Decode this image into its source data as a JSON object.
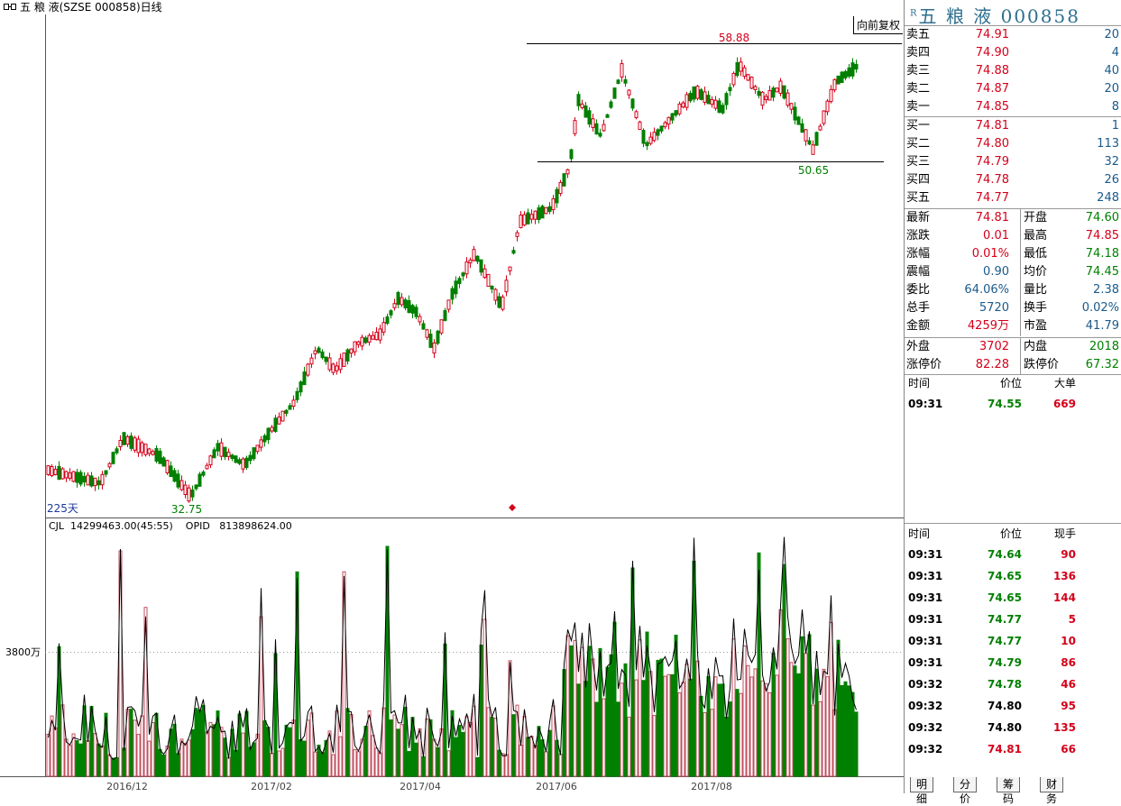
{
  "titlebar": {
    "title": "五 粮 液(SZSE 000858)日线",
    "fuquan": "向前复权"
  },
  "chart": {
    "high_label": "58.88",
    "low_label": "50.65",
    "min_label": "32.75",
    "days_label": "225天",
    "vol_info": "CJL  14299463.00(45:55)    OPID   813898624.00",
    "vol_axis_label": "3800万",
    "x_labels": [
      "2016/12",
      "2017/02",
      "2017/04",
      "2017/06",
      "2017/08"
    ]
  },
  "panel": {
    "name": "五 粮 液 000858",
    "name_mark": "R",
    "asks": [
      {
        "label": "卖五",
        "price": "74.91",
        "vol": "20"
      },
      {
        "label": "卖四",
        "price": "74.90",
        "vol": "4"
      },
      {
        "label": "卖三",
        "price": "74.88",
        "vol": "40"
      },
      {
        "label": "卖二",
        "price": "74.87",
        "vol": "20"
      },
      {
        "label": "卖一",
        "price": "74.85",
        "vol": "8"
      }
    ],
    "bids": [
      {
        "label": "买一",
        "price": "74.81",
        "vol": "1"
      },
      {
        "label": "买二",
        "price": "74.80",
        "vol": "113"
      },
      {
        "label": "买三",
        "price": "74.79",
        "vol": "32"
      },
      {
        "label": "买四",
        "price": "74.78",
        "vol": "26"
      },
      {
        "label": "买五",
        "price": "74.77",
        "vol": "248"
      }
    ],
    "quote": [
      {
        "l1": "最新",
        "v1": "74.81",
        "c1": "red",
        "l2": "开盘",
        "v2": "74.60",
        "c2": "green"
      },
      {
        "l1": "涨跌",
        "v1": "0.01",
        "c1": "red",
        "l2": "最高",
        "v2": "74.85",
        "c2": "red"
      },
      {
        "l1": "涨幅",
        "v1": "0.01%",
        "c1": "red",
        "l2": "最低",
        "v2": "74.18",
        "c2": "green"
      },
      {
        "l1": "震幅",
        "v1": "0.90",
        "c1": "blue",
        "l2": "均价",
        "v2": "74.45",
        "c2": "green"
      },
      {
        "l1": "委比",
        "v1": "64.06%",
        "c1": "blue",
        "l2": "量比",
        "v2": "2.38",
        "c2": "blue"
      },
      {
        "l1": "总手",
        "v1": "5720",
        "c1": "blue",
        "l2": "换手",
        "v2": "0.02%",
        "c2": "blue"
      },
      {
        "l1": "金额",
        "v1": "4259万",
        "c1": "red",
        "l2": "市盈",
        "v2": "41.79",
        "c2": "blue"
      }
    ],
    "outer": {
      "l1": "外盘",
      "v1": "3702",
      "l2": "内盘",
      "v2": "2018"
    },
    "limit": {
      "l1": "涨停价",
      "v1": "82.28",
      "l2": "跌停价",
      "v2": "67.32"
    },
    "bigorder": {
      "h_time": "时间",
      "h_price": "价位",
      "h_vol": "大单",
      "time": "09:31",
      "price": "74.55",
      "vol": "669"
    },
    "ticks_header": {
      "time": "时间",
      "price": "价位",
      "vol": "现手"
    },
    "ticks": [
      {
        "time": "09:31",
        "price": "74.64",
        "vol": "90",
        "pc": "green"
      },
      {
        "time": "09:31",
        "price": "74.65",
        "vol": "136",
        "pc": "green"
      },
      {
        "time": "09:31",
        "price": "74.65",
        "vol": "144",
        "pc": "green"
      },
      {
        "time": "09:31",
        "price": "74.77",
        "vol": "5",
        "pc": "green"
      },
      {
        "time": "09:31",
        "price": "74.77",
        "vol": "10",
        "pc": "green"
      },
      {
        "time": "09:31",
        "price": "74.79",
        "vol": "86",
        "pc": "green"
      },
      {
        "time": "09:32",
        "price": "74.78",
        "vol": "46",
        "pc": "green"
      },
      {
        "time": "09:32",
        "price": "74.80",
        "vol": "95",
        "pc": "black"
      },
      {
        "time": "09:32",
        "price": "74.80",
        "vol": "135",
        "pc": "black"
      },
      {
        "time": "09:32",
        "price": "74.81",
        "vol": "66",
        "pc": "red"
      }
    ],
    "tabs": [
      "明细",
      "分价",
      "筹码",
      "财务"
    ]
  }
}
